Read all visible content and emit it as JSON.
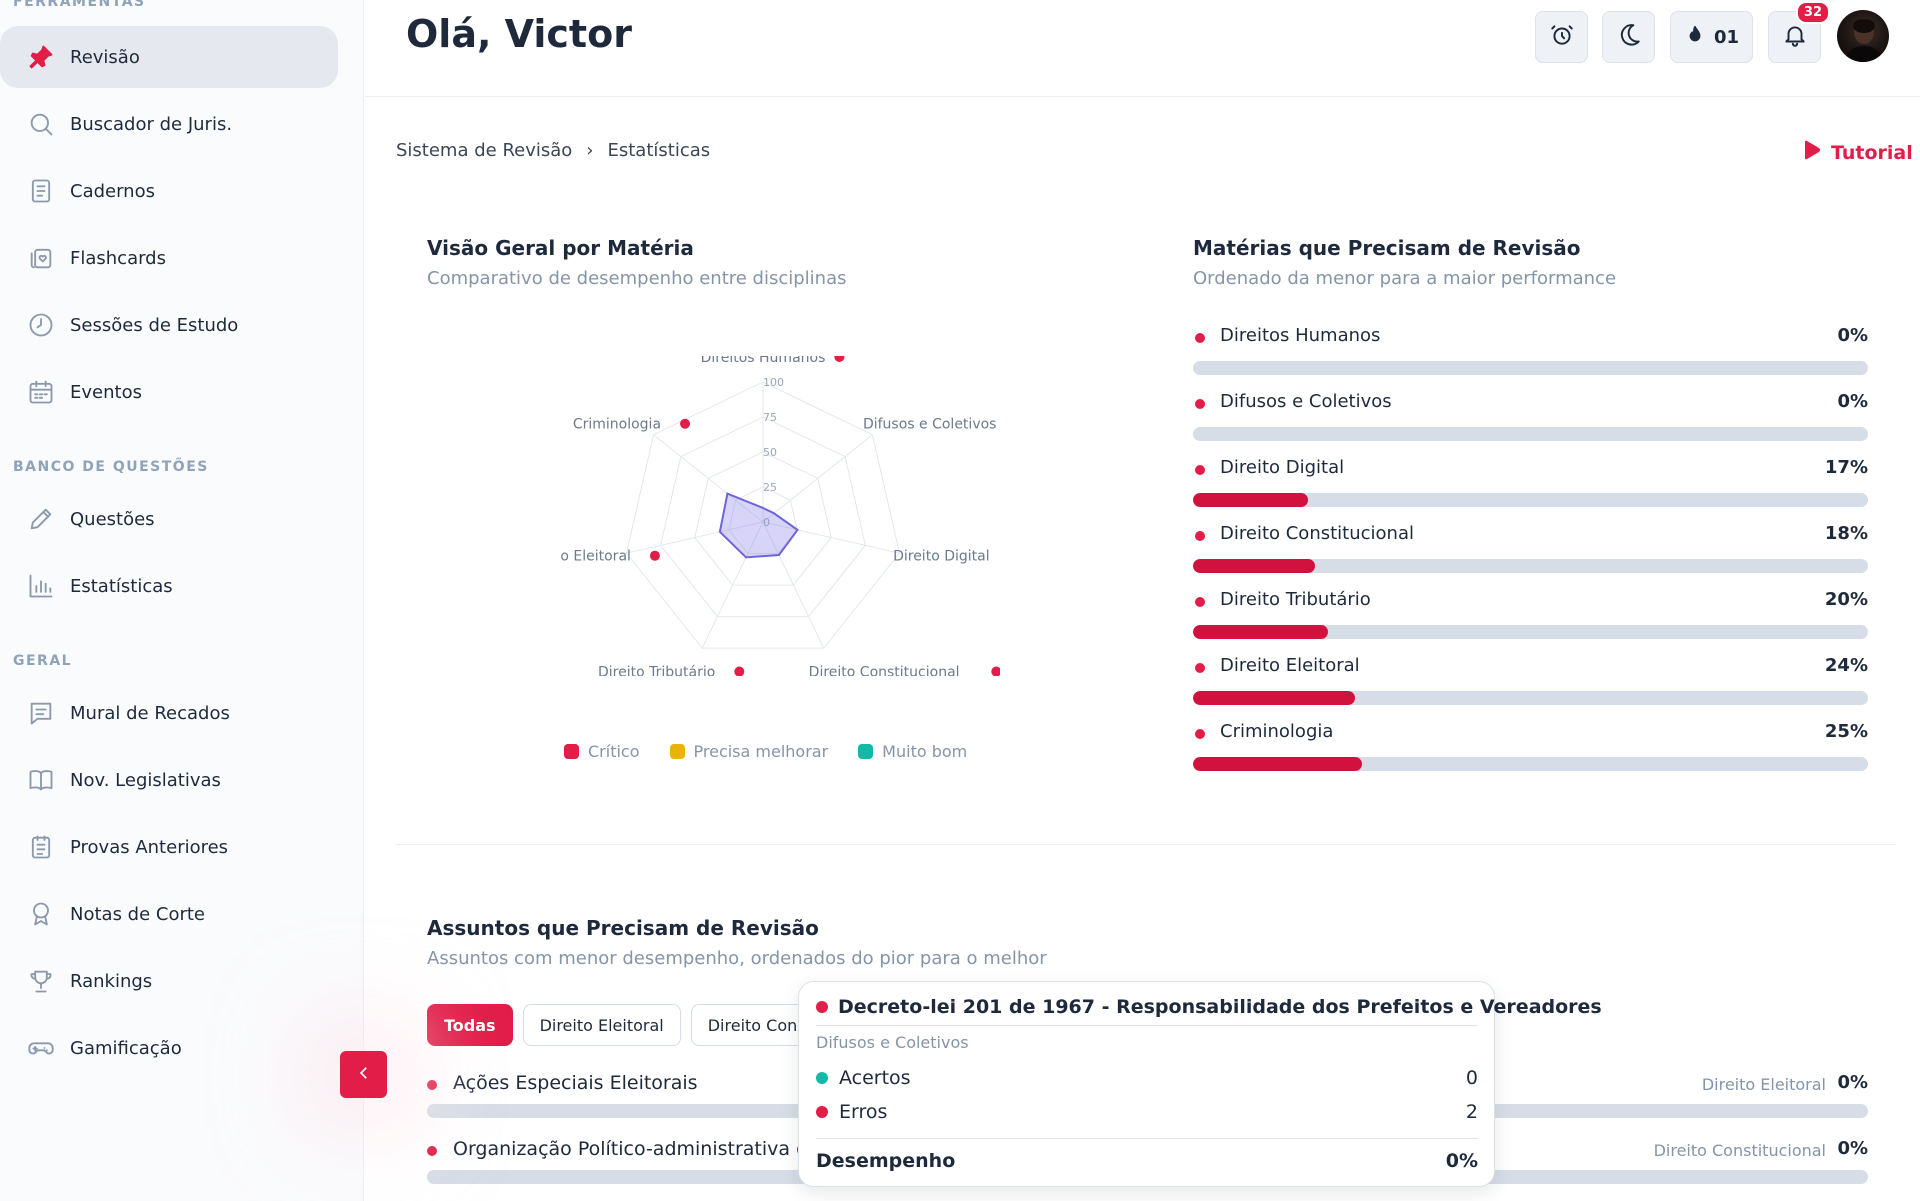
{
  "sidebar": {
    "sections": {
      "tools": "FERRAMENTAS",
      "questions": "BANCO DE QUESTÕES",
      "general": "GERAL"
    },
    "tools_items": [
      {
        "label": "Revisão",
        "icon": "pin-icon"
      },
      {
        "label": "Buscador de Juris.",
        "icon": "search-icon"
      },
      {
        "label": "Cadernos",
        "icon": "notebook-icon"
      },
      {
        "label": "Flashcards",
        "icon": "flashcards-icon"
      },
      {
        "label": "Sessões de Estudo",
        "icon": "clock-icon"
      },
      {
        "label": "Eventos",
        "icon": "calendar-icon"
      }
    ],
    "question_items": [
      {
        "label": "Questões",
        "icon": "pencil-icon"
      },
      {
        "label": "Estatísticas",
        "icon": "bar-chart-icon"
      }
    ],
    "general_items": [
      {
        "label": "Mural de Recados",
        "icon": "message-icon"
      },
      {
        "label": "Nov. Legislativas",
        "icon": "book-icon"
      },
      {
        "label": "Provas Anteriores",
        "icon": "document-icon"
      },
      {
        "label": "Notas de Corte",
        "icon": "award-icon"
      },
      {
        "label": "Rankings",
        "icon": "trophy-icon"
      },
      {
        "label": "Gamificação",
        "icon": "gamepad-icon"
      }
    ]
  },
  "header": {
    "greeting": "Olá, Victor",
    "streak_count": "01",
    "notification_count": "32"
  },
  "breadcrumb": {
    "root": "Sistema de Revisão",
    "current": "Estatísticas"
  },
  "tutorial_label": "Tutorial",
  "overview": {
    "title": "Visão Geral por Matéria",
    "subtitle": "Comparativo de desempenho entre disciplinas",
    "legend": [
      {
        "label": "Crítico",
        "color": "#e11d48"
      },
      {
        "label": "Precisa melhorar",
        "color": "#eab308"
      },
      {
        "label": "Muito bom",
        "color": "#14b8a6"
      }
    ]
  },
  "chart_data": {
    "type": "radar",
    "categories": [
      "Direitos Humanos",
      "Difusos e Coletivos",
      "Direito Digital",
      "Direito Constitucional",
      "Direito Tributário",
      "Direito Eleitoral",
      "Criminologia"
    ],
    "values": [
      0,
      0,
      17,
      18,
      20,
      24,
      25
    ],
    "ticks": [
      "0",
      "25",
      "50",
      "75",
      "100"
    ],
    "range": [
      0,
      100
    ],
    "fill_color": "#8b83e8",
    "marker_color": "#e11d48"
  },
  "review_subjects": {
    "title": "Matérias que Precisam de Revisão",
    "subtitle": "Ordenado da menor para a maior performance",
    "items": [
      {
        "name": "Direitos Humanos",
        "pct_label": "0%",
        "pct": 0
      },
      {
        "name": "Difusos e Coletivos",
        "pct_label": "0%",
        "pct": 0
      },
      {
        "name": "Direito Digital",
        "pct_label": "17%",
        "pct": 17
      },
      {
        "name": "Direito Constitucional",
        "pct_label": "18%",
        "pct": 18
      },
      {
        "name": "Direito Tributário",
        "pct_label": "20%",
        "pct": 20
      },
      {
        "name": "Direito Eleitoral",
        "pct_label": "24%",
        "pct": 24
      },
      {
        "name": "Criminologia",
        "pct_label": "25%",
        "pct": 25
      }
    ]
  },
  "topics": {
    "title": "Assuntos que Precisam de Revisão",
    "subtitle": "Assuntos com menor desempenho, ordenados do pior para o melhor",
    "filters": [
      "Todas",
      "Direito Eleitoral",
      "Direito Constitucional"
    ],
    "items": [
      {
        "name": "Ações Especiais Eleitorais",
        "subject": "Direito Eleitoral",
        "pct_label": "0%"
      },
      {
        "name": "Organização Político-administrativa do Estado",
        "subject": "Direito Constitucional",
        "pct_label": "0%"
      }
    ]
  },
  "tooltip": {
    "title": "Decreto-lei 201 de 1967 - Responsabilidade dos Prefeitos e Vereadores",
    "category": "Difusos e Coletivos",
    "hits_label": "Acertos",
    "hits_value": "0",
    "errors_label": "Erros",
    "errors_value": "2",
    "performance_label": "Desempenho",
    "performance_value": "0%"
  }
}
